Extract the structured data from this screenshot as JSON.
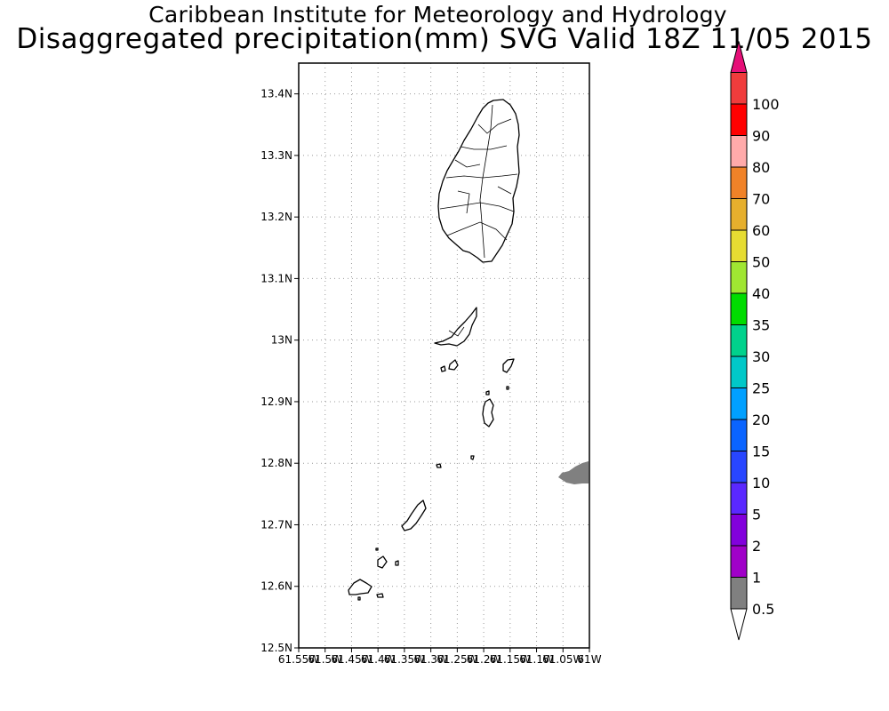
{
  "header": {
    "title": "Caribbean Institute for Meteorology and Hydrology",
    "subtitle": "Disaggregated precipitation(mm) SVG Valid 18Z 11/05 2015"
  },
  "map": {
    "lat_range": [
      12.5,
      13.45
    ],
    "lon_range": [
      -61.55,
      -61.0
    ],
    "y_tick_labels": [
      "12.5N",
      "12.6N",
      "12.7N",
      "12.8N",
      "12.9N",
      "13N",
      "13.1N",
      "13.2N",
      "13.3N",
      "13.4N"
    ],
    "y_tick_values": [
      12.5,
      12.6,
      12.7,
      12.8,
      12.9,
      13.0,
      13.1,
      13.2,
      13.3,
      13.4
    ],
    "x_tick_labels": [
      "61.55W",
      "61.5W",
      "61.45W",
      "61.4W",
      "61.35W",
      "61.3W",
      "61.25W",
      "61.2W",
      "61.15W",
      "61.1W",
      "61.05W",
      "61W"
    ],
    "x_tick_values": [
      -61.55,
      -61.5,
      -61.45,
      -61.4,
      -61.35,
      -61.3,
      -61.25,
      -61.2,
      -61.15,
      -61.1,
      -61.05,
      -61.0
    ],
    "grid": "dotted",
    "precip_patch": {
      "class": "0.5-1",
      "color": "#808080"
    }
  },
  "colorbar": {
    "labels": [
      "0.5",
      "1",
      "2",
      "5",
      "10",
      "15",
      "20",
      "25",
      "30",
      "35",
      "40",
      "50",
      "60",
      "70",
      "80",
      "90",
      "100"
    ],
    "colors": [
      "#808080",
      "#a000c8",
      "#8200dc",
      "#5a28ff",
      "#2846ff",
      "#0a64ff",
      "#00a0ff",
      "#00c8c8",
      "#00d28c",
      "#00dc00",
      "#a0e632",
      "#e6dc32",
      "#e6af2d",
      "#f08228",
      "#ffaaaa",
      "#ff0000",
      "#f03c3c",
      "#e60f78"
    ],
    "under_color": "#ffffff"
  }
}
